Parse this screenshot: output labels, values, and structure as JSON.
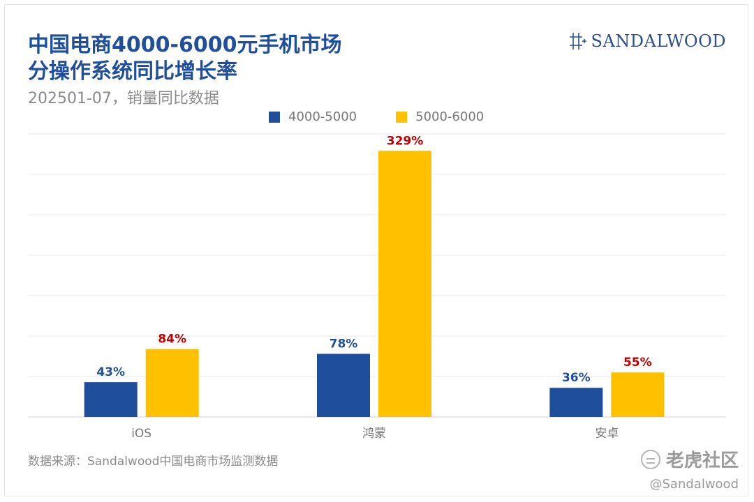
{
  "title": "中国电商4000-6000元手机市场\n分操作系统同比增长率",
  "subtitle": "202501-07，销量同比数据",
  "brand": {
    "name": "SANDALWOOD",
    "logo_icon": "sandalwood-mark-icon"
  },
  "source": "数据来源：Sandalwood中国电商市场监测数据",
  "watermark": {
    "text": "老虎社区",
    "handle": "@Sandalwood",
    "logo_icon": "tiger-community-icon"
  },
  "colors": {
    "series1": "#1f4e9c",
    "series2": "#ffc000",
    "label1": "#1f4e9c",
    "label2": "#c00000"
  },
  "chart_data": {
    "type": "bar",
    "categories": [
      "iOS",
      "鸿蒙",
      "安卓"
    ],
    "series": [
      {
        "name": "4000-5000",
        "values": [
          43,
          78,
          36
        ],
        "labels": [
          "43%",
          "78%",
          "36%"
        ]
      },
      {
        "name": "5000-6000",
        "values": [
          84,
          329,
          55
        ],
        "labels": [
          "84%",
          "329%",
          "55%"
        ]
      }
    ],
    "unit": "%",
    "ylim": [
      0,
      350
    ],
    "grid": true,
    "legend_position": "top-center"
  }
}
